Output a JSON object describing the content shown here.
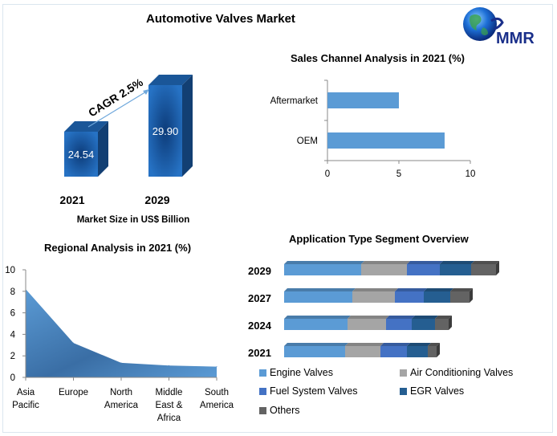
{
  "page": {
    "title": "Automotive Valves Market",
    "logo_text": "MMR"
  },
  "chart_data": [
    {
      "type": "bar",
      "id": "market-size",
      "title": "",
      "categories": [
        "2021",
        "2029"
      ],
      "values": [
        24.54,
        29.9
      ],
      "value_labels": [
        "24.54",
        "29.90"
      ],
      "xlabel": "Market Size in US$ Billion",
      "annotation": "CAGR 2.5%",
      "color": "#1f5fa8"
    },
    {
      "type": "bar",
      "id": "sales-channel",
      "orientation": "horizontal",
      "title": "Sales Channel Analysis in 2021 (%)",
      "categories": [
        "Aftermarket",
        "OEM"
      ],
      "values": [
        5.0,
        8.2
      ],
      "xlim": [
        0,
        10
      ],
      "xticks": [
        "0",
        "5",
        "10"
      ],
      "color": "#5b9bd5"
    },
    {
      "type": "area",
      "id": "regional",
      "title": "Regional Analysis in 2021 (%)",
      "categories": [
        "Asia Pacific",
        "Europe",
        "North America",
        "Middle East & Africa",
        "South America"
      ],
      "category_lines": [
        [
          "Asia",
          "Pacific"
        ],
        [
          "Europe"
        ],
        [
          "North",
          "America"
        ],
        [
          "Middle",
          "East &",
          "Africa"
        ],
        [
          "South",
          "America"
        ]
      ],
      "values": [
        8.2,
        3.2,
        1.35,
        1.1,
        1.0
      ],
      "ylim": [
        0,
        10
      ],
      "yticks": [
        "0",
        "2",
        "4",
        "6",
        "8",
        "10"
      ],
      "color": "#4a86c8"
    },
    {
      "type": "bar",
      "id": "application-type",
      "orientation": "horizontal",
      "stacked": true,
      "title": "Application Type Segment Overview",
      "categories": [
        "2029",
        "2027",
        "2024",
        "2021"
      ],
      "series": [
        {
          "name": "Engine Valves",
          "color": "#5b9bd5",
          "values": [
            96,
            85,
            79,
            76
          ]
        },
        {
          "name": "Air Conditioning Valves",
          "color": "#a5a5a5",
          "values": [
            57,
            53,
            48,
            44
          ]
        },
        {
          "name": "Fuel System Valves",
          "color": "#4472c4",
          "values": [
            41,
            36,
            32,
            33
          ]
        },
        {
          "name": "EGR Valves",
          "color": "#255e91",
          "values": [
            39,
            33,
            29,
            26
          ]
        },
        {
          "name": "Others",
          "color": "#636363",
          "values": [
            31,
            24,
            17,
            11
          ]
        }
      ],
      "units": "relative (no axis shown)"
    }
  ]
}
